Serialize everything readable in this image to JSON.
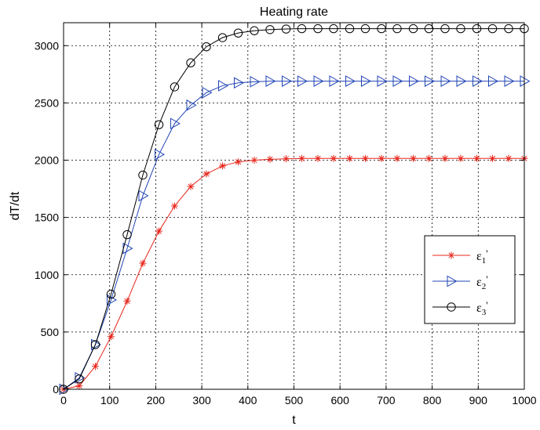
{
  "chart_data": {
    "type": "line",
    "title": "Heating rate",
    "xlabel": "t",
    "ylabel": "dT/dt",
    "xlim": [
      0,
      1000
    ],
    "ylim": [
      0,
      3200
    ],
    "xticks": [
      0,
      100,
      200,
      300,
      400,
      500,
      600,
      700,
      800,
      900,
      1000
    ],
    "yticks": [
      0,
      500,
      1000,
      1500,
      2000,
      2500,
      3000
    ],
    "grid": true,
    "legend_position": "right-center",
    "x": [
      0,
      34,
      69,
      103,
      138,
      172,
      207,
      241,
      276,
      310,
      345,
      379,
      414,
      448,
      483,
      517,
      552,
      586,
      621,
      655,
      690,
      724,
      759,
      793,
      828,
      862,
      897,
      931,
      966,
      1000
    ],
    "series": [
      {
        "name": "ε1'",
        "legend": {
          "base": "ε",
          "sub": "1",
          "suffix": "'"
        },
        "color": "#e8281e",
        "marker": "star",
        "values": [
          0,
          30,
          200,
          460,
          770,
          1100,
          1380,
          1600,
          1770,
          1880,
          1950,
          1985,
          2000,
          2008,
          2012,
          2015,
          2015,
          2015,
          2015,
          2015,
          2015,
          2015,
          2015,
          2015,
          2015,
          2015,
          2015,
          2015,
          2015,
          2015
        ]
      },
      {
        "name": "ε2'",
        "legend": {
          "base": "ε",
          "sub": "2",
          "suffix": "'"
        },
        "color": "#2145b5",
        "marker": "triangle-right",
        "values": [
          0,
          100,
          390,
          780,
          1230,
          1690,
          2050,
          2320,
          2480,
          2590,
          2650,
          2675,
          2685,
          2690,
          2690,
          2690,
          2690,
          2690,
          2690,
          2690,
          2690,
          2690,
          2690,
          2690,
          2690,
          2690,
          2690,
          2690,
          2690,
          2690
        ]
      },
      {
        "name": "ε3'",
        "legend": {
          "base": "ε",
          "sub": "3",
          "suffix": "'"
        },
        "color": "#000000",
        "marker": "circle",
        "values": [
          0,
          90,
          390,
          830,
          1350,
          1870,
          2310,
          2640,
          2850,
          2990,
          3070,
          3110,
          3130,
          3140,
          3145,
          3148,
          3148,
          3148,
          3148,
          3148,
          3148,
          3148,
          3148,
          3148,
          3148,
          3148,
          3148,
          3148,
          3148,
          3148
        ]
      }
    ]
  }
}
